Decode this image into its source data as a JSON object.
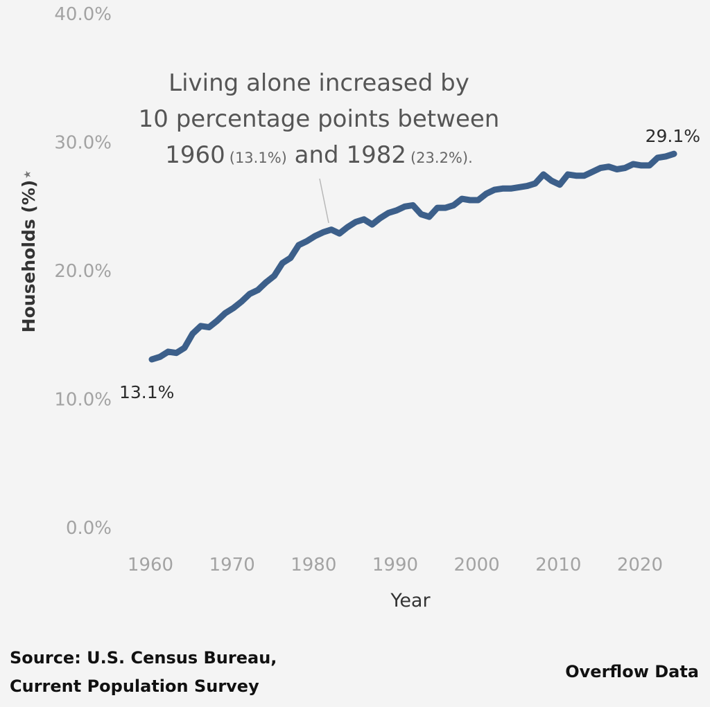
{
  "chart_data": {
    "type": "line",
    "xlabel": "Year",
    "ylabel": "Households (%)",
    "ylabel_marker": "★",
    "ylim": [
      0,
      40
    ],
    "yticks": [
      "0.0%",
      "10.0%",
      "20.0%",
      "30.0%",
      "40.0%"
    ],
    "ytick_values": [
      0,
      10,
      20,
      30,
      40
    ],
    "xticks": [
      "1960",
      "1970",
      "1980",
      "1990",
      "2000",
      "2010",
      "2020"
    ],
    "xtick_values": [
      1960,
      1970,
      1980,
      1990,
      2000,
      2010,
      2020
    ],
    "xlim": [
      1957,
      2026
    ],
    "line_color": "#3c5f8a",
    "grid": false,
    "x": [
      1960,
      1961,
      1962,
      1963,
      1964,
      1965,
      1966,
      1967,
      1968,
      1969,
      1970,
      1971,
      1972,
      1973,
      1974,
      1975,
      1976,
      1977,
      1978,
      1979,
      1980,
      1981,
      1982,
      1983,
      1984,
      1985,
      1986,
      1987,
      1988,
      1989,
      1990,
      1991,
      1992,
      1993,
      1994,
      1995,
      1996,
      1997,
      1998,
      1999,
      2000,
      2001,
      2002,
      2003,
      2004,
      2005,
      2006,
      2007,
      2008,
      2009,
      2010,
      2011,
      2012,
      2013,
      2014,
      2015,
      2016,
      2017,
      2018,
      2019,
      2020,
      2021,
      2022,
      2023,
      2024
    ],
    "y": [
      13.1,
      13.3,
      13.7,
      13.6,
      14.0,
      15.1,
      15.7,
      15.6,
      16.1,
      16.7,
      17.1,
      17.6,
      18.2,
      18.5,
      19.1,
      19.6,
      20.6,
      21.0,
      22.0,
      22.3,
      22.7,
      23.0,
      23.2,
      22.9,
      23.4,
      23.8,
      24.0,
      23.6,
      24.1,
      24.5,
      24.7,
      25.0,
      25.1,
      24.4,
      24.2,
      24.9,
      24.9,
      25.1,
      25.6,
      25.5,
      25.5,
      26.0,
      26.3,
      26.4,
      26.4,
      26.5,
      26.6,
      26.8,
      27.5,
      27.0,
      26.7,
      27.5,
      27.4,
      27.4,
      27.7,
      28.0,
      28.1,
      27.9,
      28.0,
      28.3,
      28.2,
      28.2,
      28.8,
      28.9,
      29.1
    ],
    "start_label": "13.1%",
    "end_label": "29.1%",
    "annotation": {
      "line1": "Living alone increased by",
      "line2": "10 percentage points between",
      "year1": "1960",
      "val1": "(13.1%)",
      "and": " and ",
      "year2": "1982",
      "val2": "(23.2%)",
      "period": "."
    }
  },
  "footer": {
    "source_line1": "Source: U.S. Census Bureau,",
    "source_line2": "Current Population Survey",
    "brand": "Overflow Data"
  }
}
